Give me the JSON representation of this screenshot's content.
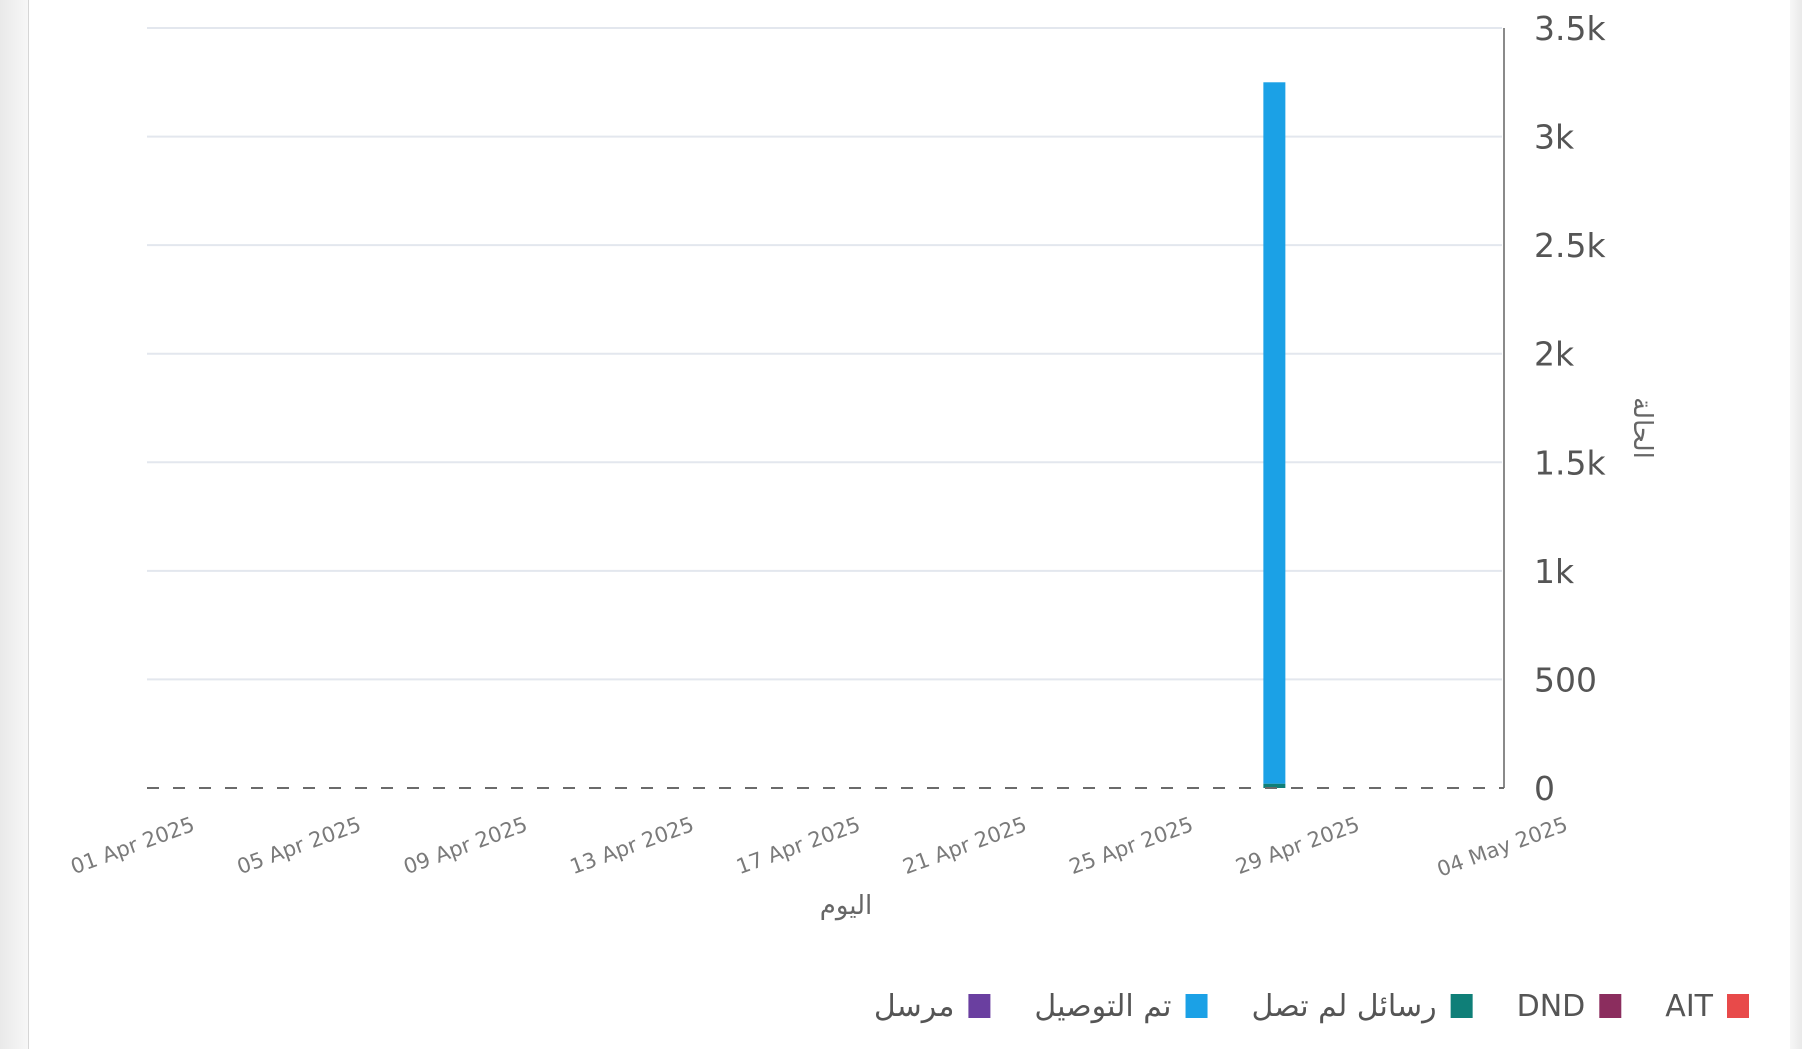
{
  "chart_data": {
    "type": "bar",
    "stacked": true,
    "xlabel": "اليوم",
    "ylabel": "الحالة",
    "ylim": [
      0,
      3500
    ],
    "yticks": [
      {
        "value": 0,
        "label": "0"
      },
      {
        "value": 500,
        "label": "500"
      },
      {
        "value": 1000,
        "label": "1k"
      },
      {
        "value": 1500,
        "label": "1.5k"
      },
      {
        "value": 2000,
        "label": "2k"
      },
      {
        "value": 2500,
        "label": "2.5k"
      },
      {
        "value": 3000,
        "label": "3k"
      },
      {
        "value": 3500,
        "label": "3.5k"
      }
    ],
    "xrange": [
      "2025-04-01",
      "2025-05-04"
    ],
    "xticks": [
      {
        "date": "2025-04-01",
        "label": "01 Apr 2025"
      },
      {
        "date": "2025-04-05",
        "label": "05 Apr 2025"
      },
      {
        "date": "2025-04-09",
        "label": "09 Apr 2025"
      },
      {
        "date": "2025-04-13",
        "label": "13 Apr 2025"
      },
      {
        "date": "2025-04-17",
        "label": "17 Apr 2025"
      },
      {
        "date": "2025-04-21",
        "label": "21 Apr 2025"
      },
      {
        "date": "2025-04-25",
        "label": "25 Apr 2025"
      },
      {
        "date": "2025-04-29",
        "label": "29 Apr 2025"
      },
      {
        "date": "2025-05-04",
        "label": "04 May 2025"
      }
    ],
    "grid": true,
    "legend_position": "bottom",
    "series": [
      {
        "name": "AIT",
        "color": "#e84a4a",
        "points": []
      },
      {
        "name": "DND",
        "color": "#8b2d5e",
        "points": []
      },
      {
        "name": "رسائل لم تصل",
        "color": "#0f7f78",
        "points": [
          {
            "x": "2025-04-28",
            "y": 20
          }
        ]
      },
      {
        "name": "تم التوصيل",
        "color": "#1ba1e6",
        "points": [
          {
            "x": "2025-04-28",
            "y": 3230
          }
        ]
      },
      {
        "name": "مرسل",
        "color": "#6a3fa0",
        "points": []
      }
    ]
  }
}
